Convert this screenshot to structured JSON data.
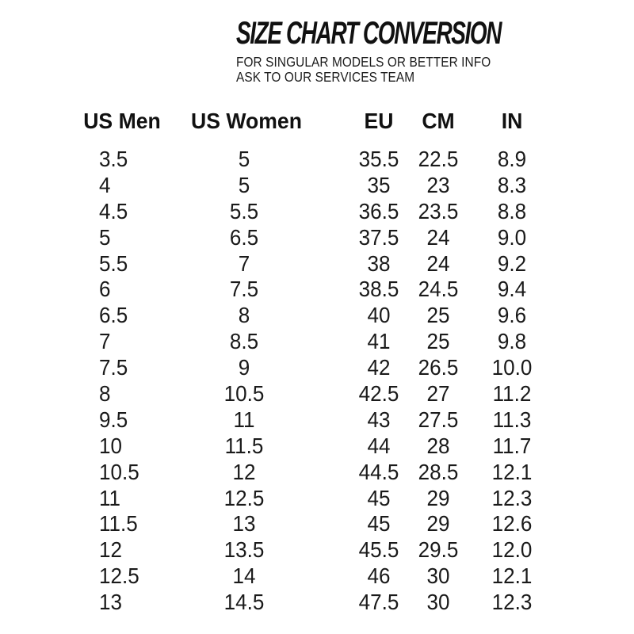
{
  "header": {
    "title": "SIZE CHART CONVERSION",
    "subtitle_lines": [
      "FOR SINGULAR MODELS OR BETTER INFO",
      "ASK TO OUR SERVICES TEAM"
    ]
  },
  "chart_data": {
    "type": "table",
    "title": "SIZE CHART CONVERSION",
    "columns": [
      "US Men",
      "US Women",
      "EU",
      "CM",
      "IN"
    ],
    "rows": [
      [
        "3.5",
        "5",
        "35.5",
        "22.5",
        "8.9"
      ],
      [
        "4",
        "5",
        "35",
        "23",
        "8.3"
      ],
      [
        "4.5",
        "5.5",
        "36.5",
        "23.5",
        "8.8"
      ],
      [
        "5",
        "6.5",
        "37.5",
        "24",
        "9.0"
      ],
      [
        "5.5",
        "7",
        "38",
        "24",
        "9.2"
      ],
      [
        "6",
        "7.5",
        "38.5",
        "24.5",
        "9.4"
      ],
      [
        "6.5",
        "8",
        "40",
        "25",
        "9.6"
      ],
      [
        "7",
        "8.5",
        "41",
        "25",
        "9.8"
      ],
      [
        "7.5",
        "9",
        "42",
        "26.5",
        "10.0"
      ],
      [
        "8",
        "10.5",
        "42.5",
        "27",
        "11.2"
      ],
      [
        "9.5",
        "11",
        "43",
        "27.5",
        "11.3"
      ],
      [
        "10",
        "11.5",
        "44",
        "28",
        "11.7"
      ],
      [
        "10.5",
        "12",
        "44.5",
        "28.5",
        "12.1"
      ],
      [
        "11",
        "12.5",
        "45",
        "29",
        "12.3"
      ],
      [
        "11.5",
        "13",
        "45",
        "29",
        "12.6"
      ],
      [
        "12",
        "13.5",
        "45.5",
        "29.5",
        "12.0"
      ],
      [
        "12.5",
        "14",
        "46",
        "30",
        "12.1"
      ],
      [
        "13",
        "14.5",
        "47.5",
        "30",
        "12.3"
      ]
    ],
    "layout": {
      "column_alignment": [
        "left",
        "center",
        "center",
        "center",
        "center"
      ],
      "grid": "off",
      "header_style": "bold"
    }
  },
  "colors": {
    "background": "#ffffff",
    "text": "#161616"
  }
}
